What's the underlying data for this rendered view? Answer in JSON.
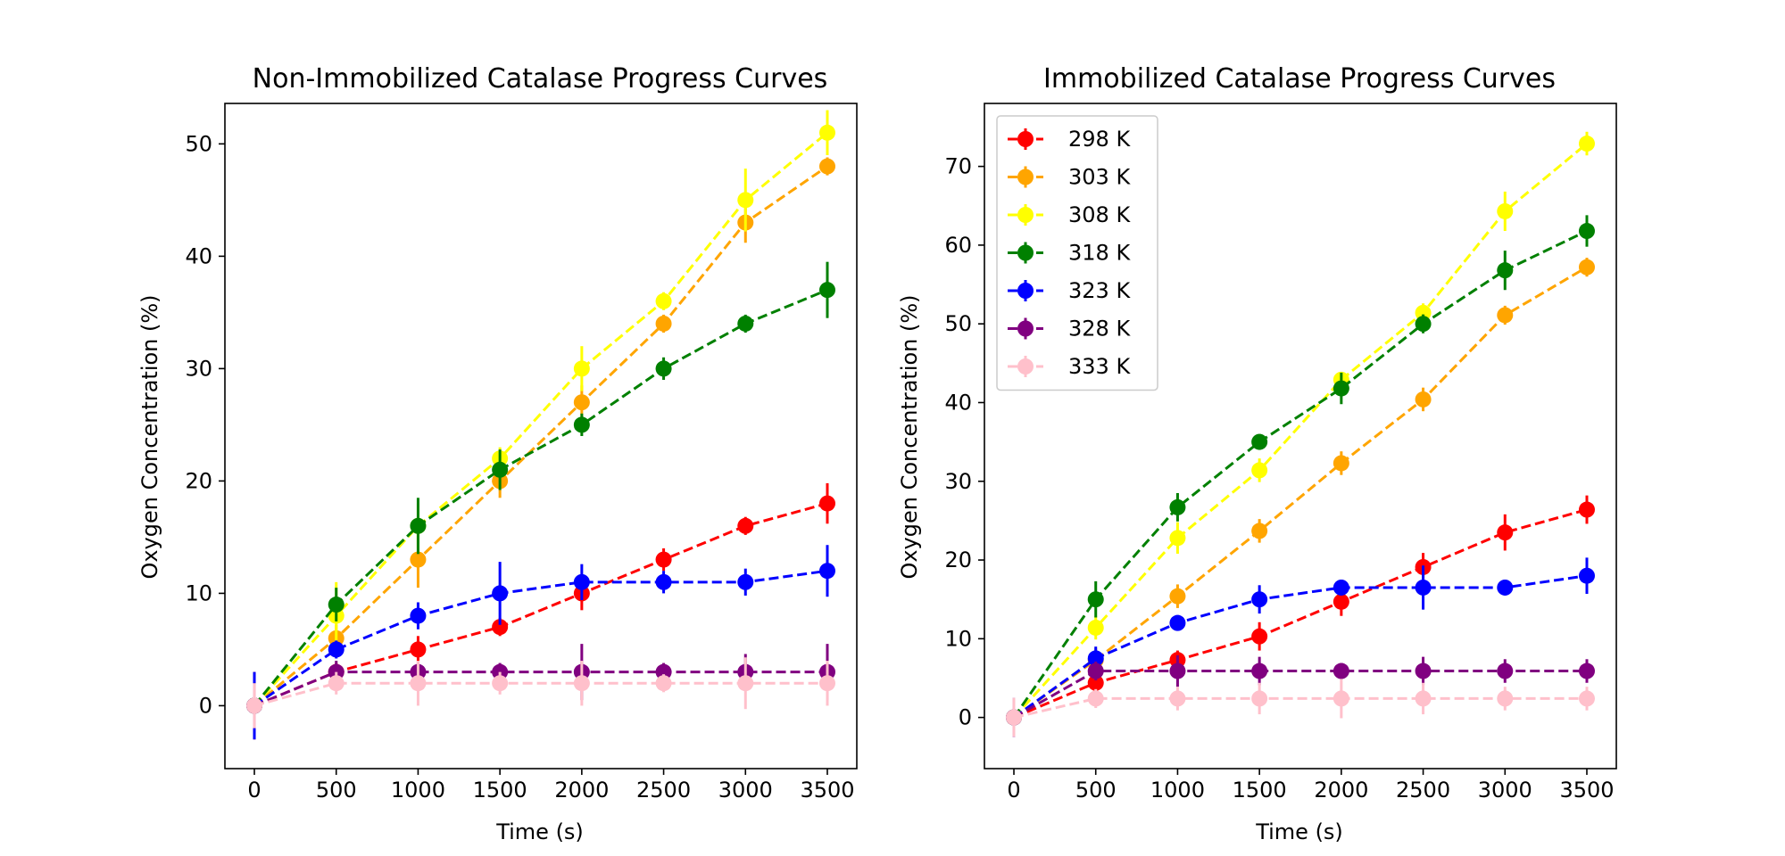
{
  "chart_data": [
    {
      "type": "line",
      "title": "Non-Immobilized Catalase Progress Curves",
      "xlabel": "Time (s)",
      "ylabel": "Oxygen Concentration (%)",
      "xlim": [
        -180,
        3680
      ],
      "ylim": [
        -5.6,
        53.6
      ],
      "xticks": [
        0,
        500,
        1000,
        1500,
        2000,
        2500,
        3000,
        3500
      ],
      "yticks": [
        0,
        10,
        20,
        30,
        40,
        50
      ],
      "x": [
        0,
        500,
        1000,
        1500,
        2000,
        2500,
        3000,
        3500
      ],
      "grid": false,
      "legend": false,
      "series": [
        {
          "name": "298 K",
          "color": "#ff0000",
          "values": [
            0,
            3,
            5,
            7,
            10,
            13,
            16,
            18
          ],
          "errors": [
            3,
            0.8,
            1.2,
            0.8,
            1.5,
            1.0,
            0.8,
            1.8
          ]
        },
        {
          "name": "303 K",
          "color": "#ffa500",
          "values": [
            0,
            6,
            13,
            20,
            27,
            34,
            43,
            48
          ],
          "errors": [
            2,
            1.2,
            2.5,
            1.5,
            1.5,
            0.8,
            1.8,
            0.8
          ]
        },
        {
          "name": "308 K",
          "color": "#ffff00",
          "values": [
            0,
            8,
            16,
            22,
            30,
            36,
            45,
            51
          ],
          "errors": [
            2,
            3.0,
            2.0,
            1.0,
            2.0,
            0.8,
            2.8,
            2.0
          ]
        },
        {
          "name": "318 K",
          "color": "#008000",
          "values": [
            0,
            9,
            16,
            21,
            25,
            30,
            34,
            37
          ],
          "errors": [
            2,
            1.5,
            2.5,
            1.8,
            1.0,
            1.0,
            0.8,
            2.5
          ]
        },
        {
          "name": "323 K",
          "color": "#0000ff",
          "values": [
            0,
            5,
            8,
            10,
            11,
            11,
            11,
            12
          ],
          "errors": [
            3,
            0.8,
            1.2,
            2.8,
            1.6,
            1.0,
            1.2,
            2.3
          ]
        },
        {
          "name": "328 K",
          "color": "#800080",
          "values": [
            0,
            3,
            3,
            3,
            3,
            3,
            3,
            3
          ],
          "errors": [
            2,
            1.0,
            0.8,
            0.8,
            2.5,
            0.8,
            1.6,
            2.5
          ]
        },
        {
          "name": "333 K",
          "color": "#ffc0cb",
          "values": [
            0,
            2,
            2,
            2,
            2,
            2,
            2,
            2
          ],
          "errors": [
            2,
            1.0,
            2.0,
            1.0,
            2.0,
            0.8,
            2.3,
            2.0
          ]
        }
      ]
    },
    {
      "type": "line",
      "title": "Immobilized Catalase Progress Curves",
      "xlabel": "Time (s)",
      "ylabel": "Oxygen Concentration (%)",
      "xlim": [
        -180,
        3680
      ],
      "ylim": [
        -6.5,
        78.0
      ],
      "xticks": [
        0,
        500,
        1000,
        1500,
        2000,
        2500,
        3000,
        3500
      ],
      "yticks": [
        0,
        10,
        20,
        30,
        40,
        50,
        60,
        70
      ],
      "x": [
        0,
        500,
        1000,
        1500,
        2000,
        2500,
        3000,
        3500
      ],
      "grid": false,
      "legend": "top-left",
      "series": [
        {
          "name": "298 K",
          "color": "#ff0000",
          "values": [
            0,
            4.4,
            7.3,
            10.3,
            14.7,
            19.1,
            23.5,
            26.4
          ],
          "errors": [
            2,
            1.2,
            1.2,
            1.8,
            1.8,
            1.8,
            2.3,
            1.8
          ]
        },
        {
          "name": "303 K",
          "color": "#ffa500",
          "values": [
            0,
            7.3,
            15.4,
            23.7,
            32.3,
            40.4,
            51.1,
            57.2
          ],
          "errors": [
            2,
            1.5,
            1.5,
            1.5,
            1.5,
            1.5,
            1.2,
            1.2
          ]
        },
        {
          "name": "308 K",
          "color": "#ffff00",
          "values": [
            0,
            11.4,
            22.8,
            31.4,
            42.9,
            51.4,
            64.3,
            72.9
          ],
          "errors": [
            2,
            1.5,
            2.0,
            1.5,
            1.0,
            1.2,
            2.5,
            1.5
          ]
        },
        {
          "name": "318 K",
          "color": "#008000",
          "values": [
            0,
            15.0,
            26.7,
            35.0,
            41.8,
            50.0,
            56.8,
            61.8
          ],
          "errors": [
            2,
            2.3,
            1.8,
            1.0,
            2.0,
            1.2,
            2.5,
            2.0
          ]
        },
        {
          "name": "323 K",
          "color": "#0000ff",
          "values": [
            0,
            7.5,
            12.0,
            15.0,
            16.5,
            16.5,
            16.5,
            18.0
          ],
          "errors": [
            2.5,
            1.5,
            1.0,
            1.8,
            1.0,
            2.8,
            1.0,
            2.3
          ]
        },
        {
          "name": "328 K",
          "color": "#800080",
          "values": [
            0,
            5.9,
            5.9,
            5.9,
            5.9,
            5.9,
            5.9,
            5.9
          ],
          "errors": [
            2,
            1.2,
            2.0,
            1.8,
            1.0,
            1.8,
            1.5,
            1.5
          ]
        },
        {
          "name": "333 K",
          "color": "#ffc0cb",
          "values": [
            0,
            2.4,
            2.4,
            2.4,
            2.4,
            2.4,
            2.4,
            2.4
          ],
          "errors": [
            2.5,
            1.2,
            1.5,
            2.0,
            2.5,
            2.0,
            1.5,
            1.5
          ]
        }
      ]
    }
  ]
}
